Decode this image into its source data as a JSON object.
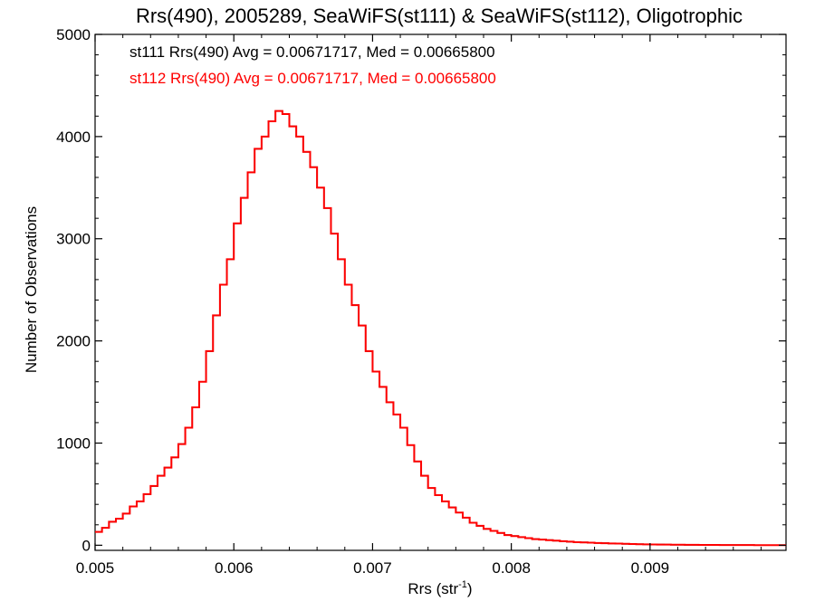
{
  "chart_data": {
    "type": "step-histogram",
    "title": "Rrs(490), 2005289, SeaWiFS(st111) & SeaWiFS(st112), Oligotrophic",
    "xlabel_main": "Rrs (str",
    "xlabel_sup": "-1",
    "xlabel_close": ")",
    "ylabel": "Number of Observations",
    "xlim": [
      0.005,
      0.00998
    ],
    "ylim": [
      -50,
      5000
    ],
    "x_ticks": [
      0.005,
      0.006,
      0.007,
      0.008,
      0.009
    ],
    "x_tick_labels": [
      "0.005",
      "0.006",
      "0.007",
      "0.008",
      "0.009"
    ],
    "y_ticks": [
      0,
      1000,
      2000,
      3000,
      4000,
      5000
    ],
    "y_tick_labels": [
      "0",
      "1000",
      "2000",
      "3000",
      "4000",
      "5000"
    ],
    "annotations": [
      {
        "text": "st111 Rrs(490) Avg = 0.00671717, Med = 0.00665800",
        "color": "#000000"
      },
      {
        "text": "st112 Rrs(490) Avg = 0.00671717, Med = 0.00665800",
        "color": "#ff0000"
      }
    ],
    "series": [
      {
        "name": "st111",
        "color": "#000000",
        "x": [
          0.005,
          0.00505,
          0.0051,
          0.00515,
          0.0052,
          0.00525,
          0.0053,
          0.00535,
          0.0054,
          0.00545,
          0.0055,
          0.00555,
          0.0056,
          0.00565,
          0.0057,
          0.00575,
          0.0058,
          0.00585,
          0.0059,
          0.00595,
          0.006,
          0.00605,
          0.0061,
          0.00615,
          0.0062,
          0.00625,
          0.0063,
          0.00635,
          0.0064,
          0.00645,
          0.0065,
          0.00655,
          0.0066,
          0.00665,
          0.0067,
          0.00675,
          0.0068,
          0.00685,
          0.0069,
          0.00695,
          0.007,
          0.00705,
          0.0071,
          0.00715,
          0.0072,
          0.00725,
          0.0073,
          0.00735,
          0.0074,
          0.00745,
          0.0075,
          0.00755,
          0.0076,
          0.00765,
          0.0077,
          0.00775,
          0.0078,
          0.00785,
          0.0079,
          0.00795,
          0.008,
          0.00805,
          0.0081,
          0.00815,
          0.0082,
          0.00825,
          0.0083,
          0.00835,
          0.0084,
          0.00845,
          0.0085,
          0.00855,
          0.0086,
          0.00865,
          0.0087,
          0.00875,
          0.0088,
          0.00885,
          0.0089,
          0.00895,
          0.009,
          0.00905,
          0.0091,
          0.00915,
          0.0092,
          0.00925,
          0.0093,
          0.00935,
          0.0094,
          0.00945,
          0.0095,
          0.00955,
          0.0096,
          0.00965,
          0.0097,
          0.00975,
          0.0098,
          0.00985,
          0.0099,
          0.00995
        ],
        "values": [
          130,
          170,
          230,
          260,
          310,
          380,
          430,
          500,
          580,
          680,
          760,
          860,
          990,
          1150,
          1350,
          1600,
          1900,
          2250,
          2550,
          2800,
          3150,
          3400,
          3650,
          3880,
          4000,
          4150,
          4250,
          4220,
          4100,
          4000,
          3850,
          3700,
          3500,
          3300,
          3050,
          2800,
          2550,
          2350,
          2150,
          1900,
          1700,
          1550,
          1400,
          1280,
          1150,
          980,
          820,
          680,
          560,
          490,
          430,
          370,
          320,
          270,
          220,
          190,
          160,
          140,
          120,
          100,
          90,
          80,
          70,
          60,
          55,
          50,
          45,
          40,
          35,
          30,
          28,
          25,
          22,
          20,
          18,
          16,
          14,
          12,
          10,
          9,
          8,
          7,
          6,
          5,
          5,
          4,
          4,
          3,
          3,
          3,
          2,
          2,
          2,
          2,
          2,
          1,
          1,
          1,
          1,
          1
        ]
      },
      {
        "name": "st112",
        "color": "#ff0000",
        "x": [
          0.005,
          0.00505,
          0.0051,
          0.00515,
          0.0052,
          0.00525,
          0.0053,
          0.00535,
          0.0054,
          0.00545,
          0.0055,
          0.00555,
          0.0056,
          0.00565,
          0.0057,
          0.00575,
          0.0058,
          0.00585,
          0.0059,
          0.00595,
          0.006,
          0.00605,
          0.0061,
          0.00615,
          0.0062,
          0.00625,
          0.0063,
          0.00635,
          0.0064,
          0.00645,
          0.0065,
          0.00655,
          0.0066,
          0.00665,
          0.0067,
          0.00675,
          0.0068,
          0.00685,
          0.0069,
          0.00695,
          0.007,
          0.00705,
          0.0071,
          0.00715,
          0.0072,
          0.00725,
          0.0073,
          0.00735,
          0.0074,
          0.00745,
          0.0075,
          0.00755,
          0.0076,
          0.00765,
          0.0077,
          0.00775,
          0.0078,
          0.00785,
          0.0079,
          0.00795,
          0.008,
          0.00805,
          0.0081,
          0.00815,
          0.0082,
          0.00825,
          0.0083,
          0.00835,
          0.0084,
          0.00845,
          0.0085,
          0.00855,
          0.0086,
          0.00865,
          0.0087,
          0.00875,
          0.0088,
          0.00885,
          0.0089,
          0.00895,
          0.009,
          0.00905,
          0.0091,
          0.00915,
          0.0092,
          0.00925,
          0.0093,
          0.00935,
          0.0094,
          0.00945,
          0.0095,
          0.00955,
          0.0096,
          0.00965,
          0.0097,
          0.00975,
          0.0098,
          0.00985,
          0.0099,
          0.00995
        ],
        "values": [
          130,
          170,
          230,
          260,
          310,
          380,
          430,
          500,
          580,
          680,
          760,
          860,
          990,
          1150,
          1350,
          1600,
          1900,
          2250,
          2550,
          2800,
          3150,
          3400,
          3650,
          3880,
          4000,
          4150,
          4250,
          4220,
          4100,
          4000,
          3850,
          3700,
          3500,
          3300,
          3050,
          2800,
          2550,
          2350,
          2150,
          1900,
          1700,
          1550,
          1400,
          1280,
          1150,
          980,
          820,
          680,
          560,
          490,
          430,
          370,
          320,
          270,
          220,
          190,
          160,
          140,
          120,
          100,
          90,
          80,
          70,
          60,
          55,
          50,
          45,
          40,
          35,
          30,
          28,
          25,
          22,
          20,
          18,
          16,
          14,
          12,
          10,
          9,
          8,
          7,
          6,
          5,
          5,
          4,
          4,
          3,
          3,
          3,
          2,
          2,
          2,
          2,
          2,
          1,
          1,
          1,
          1,
          1
        ]
      }
    ]
  }
}
